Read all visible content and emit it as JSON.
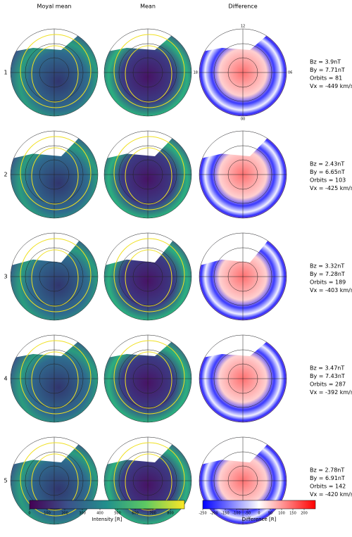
{
  "columns": [
    "Moyal mean",
    "Mean",
    "Difference"
  ],
  "rows": [
    {
      "label": "1",
      "params": [
        "Bz = 3.9nT",
        "By = 7.71nT",
        "Orbits = 81",
        "Vx = -449 km/s"
      ]
    },
    {
      "label": "2",
      "params": [
        "Bz = 2.43nT",
        "By = 6.65nT",
        "Orbits = 103",
        "Vx = -425 km/s"
      ]
    },
    {
      "label": "3",
      "params": [
        "Bz = 3.32nT",
        "By = 7.28nT",
        "Orbits = 189",
        "Vx = -403 km/s"
      ]
    },
    {
      "label": "4",
      "params": [
        "Bz = 3.47nT",
        "By = 7.43nT",
        "Orbits = 287",
        "Vx = -392 km/s"
      ]
    },
    {
      "label": "5",
      "params": [
        "Bz = 2.78nT",
        "By = 6.91nT",
        "Orbits = 142",
        "Vx = -420 km/s"
      ]
    }
  ],
  "hour_labels": {
    "top": "12",
    "left": "18",
    "right": "06",
    "bottom": "00"
  },
  "colorbars": [
    {
      "label": "Intensity [R]",
      "lim": [
        0,
        880
      ],
      "ticks": [
        0,
        100,
        200,
        300,
        400,
        500,
        600,
        700,
        800
      ],
      "colors": [
        "#440154",
        "#3b528b",
        "#21918c",
        "#5ec962",
        "#fde725"
      ]
    },
    {
      "label": "Difference [R]",
      "lim": [
        -250,
        250
      ],
      "ticks": [
        -250,
        -200,
        -150,
        -100,
        -50,
        0,
        50,
        100,
        150,
        200
      ],
      "colors": [
        "#0000ff",
        "#ffffff",
        "#ff0000"
      ]
    }
  ]
}
